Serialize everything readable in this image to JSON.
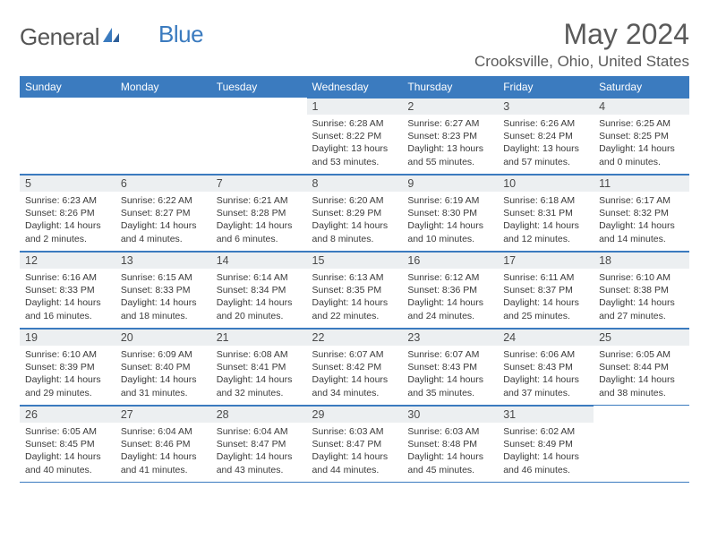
{
  "logo": {
    "word1": "General",
    "word2": "Blue"
  },
  "title": "May 2024",
  "location": "Crooksville, Ohio, United States",
  "colors": {
    "header_bg": "#3b7bbf",
    "header_text": "#ffffff",
    "daynum_bg": "#eceff1",
    "text": "#3a3a3a",
    "rule": "#3b7bbf"
  },
  "weekdays": [
    "Sunday",
    "Monday",
    "Tuesday",
    "Wednesday",
    "Thursday",
    "Friday",
    "Saturday"
  ],
  "weeks": [
    [
      null,
      null,
      null,
      {
        "n": "1",
        "sunrise": "6:28 AM",
        "sunset": "8:22 PM",
        "day_h": "13",
        "day_m": "53"
      },
      {
        "n": "2",
        "sunrise": "6:27 AM",
        "sunset": "8:23 PM",
        "day_h": "13",
        "day_m": "55"
      },
      {
        "n": "3",
        "sunrise": "6:26 AM",
        "sunset": "8:24 PM",
        "day_h": "13",
        "day_m": "57"
      },
      {
        "n": "4",
        "sunrise": "6:25 AM",
        "sunset": "8:25 PM",
        "day_h": "14",
        "day_m": "0"
      }
    ],
    [
      {
        "n": "5",
        "sunrise": "6:23 AM",
        "sunset": "8:26 PM",
        "day_h": "14",
        "day_m": "2"
      },
      {
        "n": "6",
        "sunrise": "6:22 AM",
        "sunset": "8:27 PM",
        "day_h": "14",
        "day_m": "4"
      },
      {
        "n": "7",
        "sunrise": "6:21 AM",
        "sunset": "8:28 PM",
        "day_h": "14",
        "day_m": "6"
      },
      {
        "n": "8",
        "sunrise": "6:20 AM",
        "sunset": "8:29 PM",
        "day_h": "14",
        "day_m": "8"
      },
      {
        "n": "9",
        "sunrise": "6:19 AM",
        "sunset": "8:30 PM",
        "day_h": "14",
        "day_m": "10"
      },
      {
        "n": "10",
        "sunrise": "6:18 AM",
        "sunset": "8:31 PM",
        "day_h": "14",
        "day_m": "12"
      },
      {
        "n": "11",
        "sunrise": "6:17 AM",
        "sunset": "8:32 PM",
        "day_h": "14",
        "day_m": "14"
      }
    ],
    [
      {
        "n": "12",
        "sunrise": "6:16 AM",
        "sunset": "8:33 PM",
        "day_h": "14",
        "day_m": "16"
      },
      {
        "n": "13",
        "sunrise": "6:15 AM",
        "sunset": "8:33 PM",
        "day_h": "14",
        "day_m": "18"
      },
      {
        "n": "14",
        "sunrise": "6:14 AM",
        "sunset": "8:34 PM",
        "day_h": "14",
        "day_m": "20"
      },
      {
        "n": "15",
        "sunrise": "6:13 AM",
        "sunset": "8:35 PM",
        "day_h": "14",
        "day_m": "22"
      },
      {
        "n": "16",
        "sunrise": "6:12 AM",
        "sunset": "8:36 PM",
        "day_h": "14",
        "day_m": "24"
      },
      {
        "n": "17",
        "sunrise": "6:11 AM",
        "sunset": "8:37 PM",
        "day_h": "14",
        "day_m": "25"
      },
      {
        "n": "18",
        "sunrise": "6:10 AM",
        "sunset": "8:38 PM",
        "day_h": "14",
        "day_m": "27"
      }
    ],
    [
      {
        "n": "19",
        "sunrise": "6:10 AM",
        "sunset": "8:39 PM",
        "day_h": "14",
        "day_m": "29"
      },
      {
        "n": "20",
        "sunrise": "6:09 AM",
        "sunset": "8:40 PM",
        "day_h": "14",
        "day_m": "31"
      },
      {
        "n": "21",
        "sunrise": "6:08 AM",
        "sunset": "8:41 PM",
        "day_h": "14",
        "day_m": "32"
      },
      {
        "n": "22",
        "sunrise": "6:07 AM",
        "sunset": "8:42 PM",
        "day_h": "14",
        "day_m": "34"
      },
      {
        "n": "23",
        "sunrise": "6:07 AM",
        "sunset": "8:43 PM",
        "day_h": "14",
        "day_m": "35"
      },
      {
        "n": "24",
        "sunrise": "6:06 AM",
        "sunset": "8:43 PM",
        "day_h": "14",
        "day_m": "37"
      },
      {
        "n": "25",
        "sunrise": "6:05 AM",
        "sunset": "8:44 PM",
        "day_h": "14",
        "day_m": "38"
      }
    ],
    [
      {
        "n": "26",
        "sunrise": "6:05 AM",
        "sunset": "8:45 PM",
        "day_h": "14",
        "day_m": "40"
      },
      {
        "n": "27",
        "sunrise": "6:04 AM",
        "sunset": "8:46 PM",
        "day_h": "14",
        "day_m": "41"
      },
      {
        "n": "28",
        "sunrise": "6:04 AM",
        "sunset": "8:47 PM",
        "day_h": "14",
        "day_m": "43"
      },
      {
        "n": "29",
        "sunrise": "6:03 AM",
        "sunset": "8:47 PM",
        "day_h": "14",
        "day_m": "44"
      },
      {
        "n": "30",
        "sunrise": "6:03 AM",
        "sunset": "8:48 PM",
        "day_h": "14",
        "day_m": "45"
      },
      {
        "n": "31",
        "sunrise": "6:02 AM",
        "sunset": "8:49 PM",
        "day_h": "14",
        "day_m": "46"
      },
      null
    ]
  ],
  "labels": {
    "sunrise": "Sunrise: ",
    "sunset": "Sunset: ",
    "daylight_prefix": "Daylight: ",
    "hours": " hours",
    "and": "and ",
    "minutes": " minutes."
  }
}
